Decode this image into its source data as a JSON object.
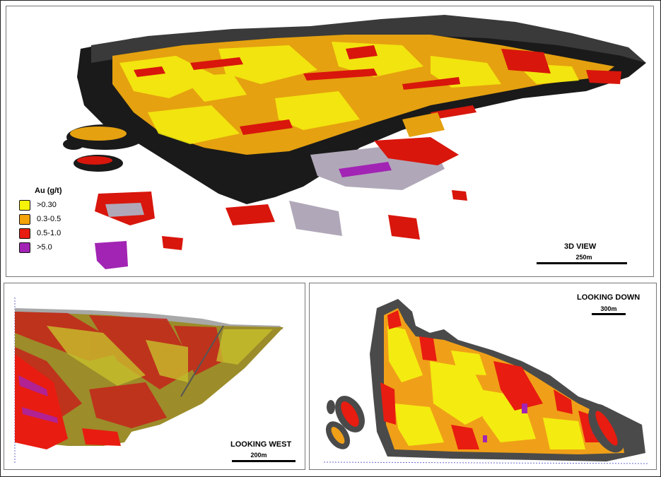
{
  "figure": {
    "views": {
      "main": {
        "label": "3D VIEW",
        "scale": "250m"
      },
      "west": {
        "label": "LOOKING WEST",
        "scale": "200m"
      },
      "down": {
        "label": "LOOKING DOWN",
        "scale": "300m"
      }
    },
    "legend": {
      "title": "Au (g/t)",
      "items": [
        {
          "label": ">0.30",
          "color": "#f7f20a"
        },
        {
          "label": "0.3-0.5",
          "color": "#f5a30a"
        },
        {
          "label": "0.5-1.0",
          "color": "#e81c10"
        },
        {
          "label": ">5.0",
          "color": "#a224b4"
        }
      ]
    },
    "colors": {
      "pit_shell": "#3a3a3a",
      "pit_outline": "#5a5a5a",
      "low_grade": "#f7f20a",
      "mid_grade": "#f5a30a",
      "high_grade": "#e81c10",
      "very_high_grade": "#a224b4"
    }
  }
}
